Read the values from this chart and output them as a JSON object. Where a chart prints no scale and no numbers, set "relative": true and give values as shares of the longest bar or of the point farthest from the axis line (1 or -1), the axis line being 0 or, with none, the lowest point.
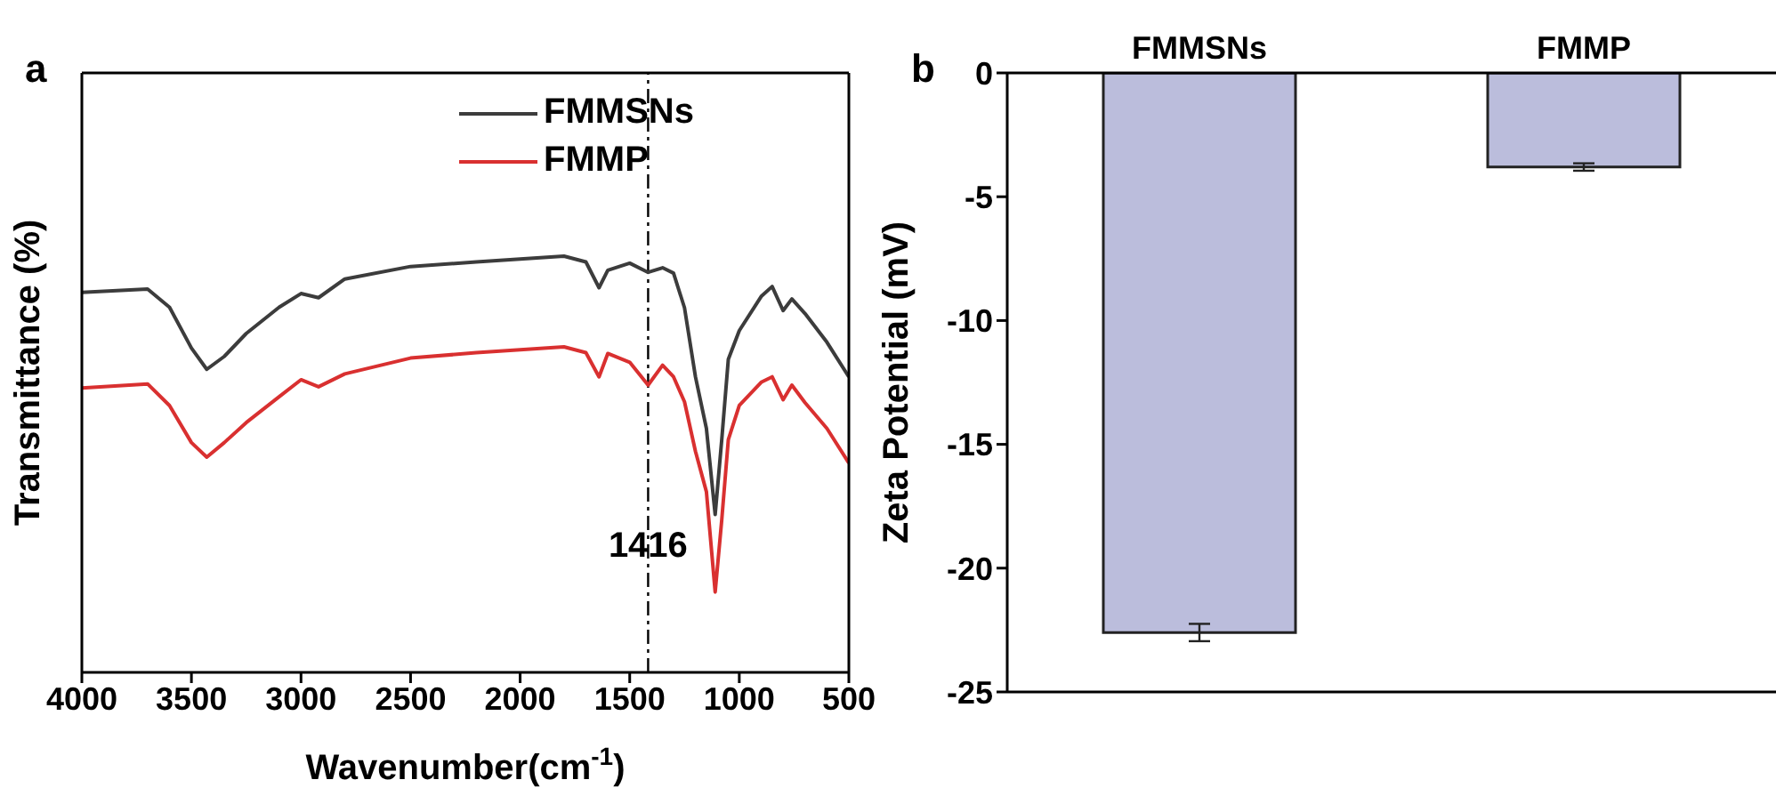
{
  "chart_data": [
    {
      "type": "line",
      "relative": true,
      "annotations": [
        "a"
      ],
      "xlabel": "Wavenumber(cm$^{-1}$)",
      "ylabel": "Transmittance (%)",
      "xlim": [
        4000,
        500
      ],
      "xticks": [
        4000,
        3500,
        3000,
        2500,
        2000,
        1500,
        1000,
        500
      ],
      "legend": "top right",
      "grid": false,
      "marker": "none",
      "x": [
        4000,
        3700,
        3600,
        3500,
        3430,
        3350,
        3250,
        3100,
        3000,
        2920,
        2800,
        2500,
        2200,
        2000,
        1800,
        1700,
        1640,
        1600,
        1500,
        1416,
        1350,
        1300,
        1250,
        1200,
        1150,
        1110,
        1080,
        1050,
        1000,
        900,
        850,
        800,
        760,
        700,
        600,
        500
      ],
      "series": [
        {
          "name": "FMMSNs",
          "color": "#3c3c3c",
          "values": [
            0.913,
            0.921,
            0.877,
            0.779,
            0.728,
            0.759,
            0.814,
            0.877,
            0.91,
            0.9,
            0.945,
            0.975,
            0.986,
            0.993,
            1.0,
            0.986,
            0.924,
            0.966,
            0.983,
            0.961,
            0.972,
            0.959,
            0.876,
            0.71,
            0.586,
            0.379,
            0.559,
            0.752,
            0.821,
            0.903,
            0.927,
            0.869,
            0.897,
            0.862,
            0.793,
            0.71
          ]
        },
        {
          "name": "FMMP",
          "color": "#d93030",
          "values": [
            0.683,
            0.693,
            0.641,
            0.552,
            0.517,
            0.552,
            0.6,
            0.662,
            0.703,
            0.686,
            0.717,
            0.755,
            0.768,
            0.775,
            0.782,
            0.768,
            0.71,
            0.766,
            0.745,
            0.69,
            0.738,
            0.71,
            0.65,
            0.531,
            0.434,
            0.193,
            0.366,
            0.559,
            0.641,
            0.697,
            0.71,
            0.655,
            0.69,
            0.648,
            0.586,
            0.503
          ]
        }
      ],
      "ref_lines": [
        {
          "axis": "x",
          "value": 1416,
          "label": "1416",
          "color": "#000000",
          "line_style": "dashed"
        }
      ]
    },
    {
      "type": "bar",
      "annotations": [
        "b"
      ],
      "ylabel": "Zeta Potential (mV)",
      "categories": [
        "FMMSNs",
        "FMMP"
      ],
      "values": [
        -22.6,
        -3.8
      ],
      "errors": [
        0.35,
        0.15
      ],
      "color": "#bbbddc",
      "ylim": [
        -25,
        0
      ],
      "yticks": [
        -25,
        -20,
        -15,
        -10,
        -5,
        0
      ],
      "grid": false,
      "legend": false
    }
  ]
}
